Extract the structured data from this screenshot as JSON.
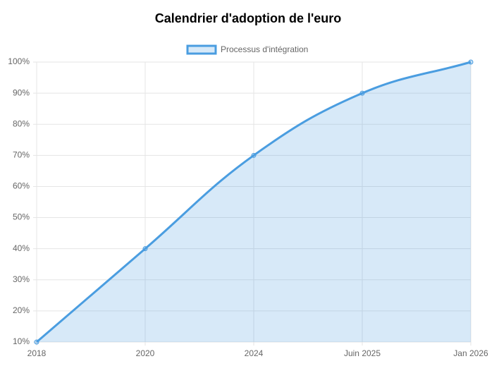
{
  "chart_data": {
    "type": "line",
    "title": "Calendrier d'adoption de l'euro",
    "categories": [
      "2018",
      "2020",
      "2024",
      "Juin 2025",
      "Jan 2026"
    ],
    "series": [
      {
        "name": "Processus d'intégration",
        "color": "#4a9de0",
        "values": [
          10,
          40,
          70,
          90,
          100
        ]
      }
    ],
    "fill": true,
    "ylim": [
      10,
      100
    ],
    "yticks": [
      {
        "value": 10,
        "label": "10%"
      },
      {
        "value": 20,
        "label": "20%"
      },
      {
        "value": 30,
        "label": "30%"
      },
      {
        "value": 40,
        "label": "40%"
      },
      {
        "value": 50,
        "label": "50%"
      },
      {
        "value": 60,
        "label": "60%"
      },
      {
        "value": 70,
        "label": "70%"
      },
      {
        "value": 80,
        "label": "80%"
      },
      {
        "value": 90,
        "label": "90%"
      },
      {
        "value": 100,
        "label": "100%"
      }
    ],
    "grid": true
  }
}
